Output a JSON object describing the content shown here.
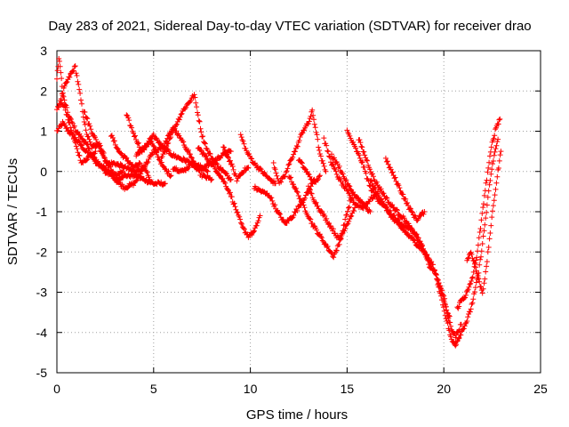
{
  "chart_data": {
    "type": "scatter",
    "title": "Day 283 of 2021, Sidereal Day-to-day VTEC variation (SDTVAR) for receiver drao",
    "xlabel": "GPS time / hours",
    "ylabel": "SDTVAR / TECUs",
    "xlim": [
      0,
      25
    ],
    "ylim": [
      -5,
      3
    ],
    "xticks": [
      "0",
      "5",
      "10",
      "15",
      "20",
      "25"
    ],
    "yticks": [
      "3",
      "2",
      "1",
      "0",
      "-1",
      "-2",
      "-3",
      "-4",
      "-5"
    ],
    "grid": true,
    "marker": "+",
    "color": "#ff0000",
    "series": [
      {
        "name": "trace-1",
        "points": [
          [
            0.0,
            1.0
          ],
          [
            0.3,
            1.2
          ],
          [
            0.6,
            1.0
          ],
          [
            1.0,
            0.8
          ],
          [
            1.5,
            0.5
          ],
          [
            2.0,
            0.3
          ],
          [
            2.5,
            0.0
          ],
          [
            3.0,
            -0.1
          ],
          [
            3.4,
            0.0
          ]
        ]
      },
      {
        "name": "trace-2",
        "points": [
          [
            0.0,
            2.3
          ],
          [
            0.1,
            2.8
          ],
          [
            0.2,
            2.5
          ],
          [
            0.3,
            1.9
          ],
          [
            0.6,
            1.4
          ],
          [
            1.0,
            1.0
          ],
          [
            1.5,
            0.7
          ],
          [
            2.0,
            0.2
          ],
          [
            2.5,
            0.1
          ],
          [
            3.0,
            -0.2
          ],
          [
            3.5,
            -0.1
          ],
          [
            4.0,
            -0.1
          ],
          [
            4.5,
            -0.2
          ],
          [
            5.0,
            -0.3
          ],
          [
            5.6,
            -0.3
          ]
        ]
      },
      {
        "name": "trace-3",
        "points": [
          [
            0.0,
            1.5
          ],
          [
            0.4,
            2.1
          ],
          [
            0.7,
            2.4
          ],
          [
            0.95,
            2.6
          ],
          [
            1.2,
            1.9
          ],
          [
            1.5,
            1.0
          ],
          [
            1.8,
            0.6
          ],
          [
            2.2,
            0.7
          ],
          [
            2.6,
            0.2
          ],
          [
            3.0,
            0.2
          ],
          [
            3.5,
            0.1
          ],
          [
            4.0,
            0.0
          ],
          [
            4.5,
            0.1
          ],
          [
            4.8,
            -0.2
          ]
        ]
      },
      {
        "name": "trace-4",
        "points": [
          [
            0.2,
            1.7
          ],
          [
            0.4,
            1.6
          ],
          [
            0.7,
            1.1
          ],
          [
            1.0,
            0.6
          ],
          [
            1.3,
            0.2
          ],
          [
            1.7,
            0.4
          ],
          [
            2.0,
            0.5
          ]
        ]
      },
      {
        "name": "trace-5",
        "points": [
          [
            1.4,
            1.5
          ],
          [
            1.8,
            1.0
          ],
          [
            2.2,
            0.6
          ],
          [
            2.6,
            0.2
          ],
          [
            2.9,
            0.0
          ]
        ]
      },
      {
        "name": "trace-6",
        "points": [
          [
            2.8,
            0.9
          ],
          [
            3.2,
            0.5
          ],
          [
            3.6,
            0.3
          ],
          [
            4.0,
            0.1
          ],
          [
            4.3,
            0.2
          ]
        ]
      },
      {
        "name": "trace-7",
        "points": [
          [
            3.6,
            1.4
          ],
          [
            4.0,
            0.9
          ],
          [
            4.4,
            0.5
          ],
          [
            4.8,
            0.8
          ],
          [
            5.2,
            0.4
          ],
          [
            5.5,
            0.1
          ],
          [
            5.9,
            -0.1
          ]
        ]
      },
      {
        "name": "trace-8",
        "points": [
          [
            3.0,
            -0.2
          ],
          [
            3.5,
            -0.4
          ],
          [
            4.0,
            -0.3
          ],
          [
            4.5,
            0.1
          ],
          [
            5.0,
            0.5
          ],
          [
            5.5,
            0.6
          ],
          [
            6.0,
            0.4
          ],
          [
            6.5,
            0.3
          ],
          [
            7.0,
            0.2
          ],
          [
            7.5,
            -0.1
          ],
          [
            8.0,
            -0.2
          ]
        ]
      },
      {
        "name": "trace-9",
        "points": [
          [
            4.1,
            0.4
          ],
          [
            4.6,
            0.6
          ],
          [
            5.0,
            0.9
          ],
          [
            5.5,
            0.6
          ],
          [
            6.0,
            1.1
          ],
          [
            6.4,
            0.8
          ],
          [
            6.8,
            0.5
          ],
          [
            7.2,
            0.1
          ],
          [
            7.8,
            0.0
          ]
        ]
      },
      {
        "name": "trace-10",
        "points": [
          [
            5.4,
            0.3
          ],
          [
            5.8,
            0.8
          ],
          [
            6.2,
            1.2
          ],
          [
            6.5,
            1.5
          ],
          [
            6.8,
            1.7
          ],
          [
            7.1,
            1.9
          ],
          [
            7.3,
            1.4
          ],
          [
            7.5,
            0.9
          ],
          [
            7.8,
            0.5
          ],
          [
            8.2,
            0.2
          ],
          [
            8.6,
            0.0
          ],
          [
            9.0,
            -0.2
          ]
        ]
      },
      {
        "name": "trace-11",
        "points": [
          [
            6.0,
            0.1
          ],
          [
            6.5,
            0.0
          ],
          [
            7.0,
            0.2
          ],
          [
            7.5,
            0.1
          ],
          [
            8.0,
            0.2
          ],
          [
            8.5,
            0.4
          ],
          [
            9.0,
            0.5
          ]
        ]
      },
      {
        "name": "trace-12",
        "points": [
          [
            7.3,
            0.6
          ],
          [
            7.8,
            0.3
          ],
          [
            8.3,
            0.0
          ],
          [
            8.7,
            -0.3
          ],
          [
            9.0,
            -0.6
          ],
          [
            9.3,
            -1.0
          ],
          [
            9.6,
            -1.4
          ],
          [
            9.9,
            -1.6
          ],
          [
            10.2,
            -1.5
          ],
          [
            10.5,
            -1.1
          ]
        ]
      },
      {
        "name": "trace-13",
        "points": [
          [
            8.6,
            0.6
          ],
          [
            9.0,
            0.2
          ],
          [
            9.3,
            -0.2
          ],
          [
            9.6,
            0.0
          ],
          [
            9.9,
            0.1
          ]
        ]
      },
      {
        "name": "trace-14",
        "points": [
          [
            9.5,
            0.9
          ],
          [
            9.8,
            0.5
          ],
          [
            10.2,
            0.2
          ],
          [
            10.6,
            0.0
          ],
          [
            11.0,
            -0.2
          ],
          [
            11.3,
            -0.3
          ]
        ]
      },
      {
        "name": "trace-15",
        "points": [
          [
            10.2,
            -0.4
          ],
          [
            10.6,
            -0.5
          ],
          [
            11.0,
            -0.6
          ],
          [
            11.4,
            -1.0
          ],
          [
            11.8,
            -1.3
          ],
          [
            12.2,
            -1.1
          ],
          [
            12.6,
            -0.8
          ],
          [
            13.0,
            -0.5
          ],
          [
            13.3,
            -0.2
          ]
        ]
      },
      {
        "name": "trace-16",
        "points": [
          [
            11.2,
            0.2
          ],
          [
            11.5,
            -0.3
          ],
          [
            11.8,
            -0.1
          ],
          [
            12.1,
            0.3
          ],
          [
            12.4,
            0.6
          ],
          [
            12.7,
            1.0
          ],
          [
            13.0,
            1.2
          ],
          [
            13.2,
            1.5
          ],
          [
            13.4,
            1.0
          ],
          [
            13.6,
            0.4
          ],
          [
            13.9,
            0.0
          ]
        ]
      },
      {
        "name": "trace-17",
        "points": [
          [
            12.0,
            -0.1
          ],
          [
            12.4,
            -0.5
          ],
          [
            12.8,
            -0.9
          ],
          [
            13.2,
            -1.3
          ],
          [
            13.6,
            -1.6
          ],
          [
            14.0,
            -1.9
          ],
          [
            14.3,
            -2.1
          ],
          [
            14.6,
            -1.8
          ],
          [
            14.9,
            -1.2
          ],
          [
            15.2,
            -0.7
          ]
        ]
      },
      {
        "name": "trace-18",
        "points": [
          [
            12.5,
            0.3
          ],
          [
            12.9,
            0.0
          ],
          [
            13.3,
            -0.3
          ],
          [
            13.6,
            -0.1
          ]
        ]
      },
      {
        "name": "trace-19",
        "points": [
          [
            13.0,
            -0.4
          ],
          [
            13.4,
            -0.8
          ],
          [
            13.8,
            -1.1
          ],
          [
            14.2,
            -1.4
          ],
          [
            14.6,
            -1.7
          ],
          [
            15.0,
            -1.3
          ],
          [
            15.4,
            -0.9
          ]
        ]
      },
      {
        "name": "trace-20",
        "points": [
          [
            13.8,
            0.8
          ],
          [
            14.2,
            0.2
          ],
          [
            14.6,
            -0.2
          ],
          [
            15.0,
            -0.5
          ],
          [
            15.4,
            -0.8
          ],
          [
            15.8,
            -0.9
          ],
          [
            16.2,
            -0.7
          ],
          [
            16.6,
            -0.5
          ]
        ]
      },
      {
        "name": "trace-21",
        "points": [
          [
            14.2,
            0.4
          ],
          [
            14.6,
            0.1
          ],
          [
            15.0,
            -0.3
          ],
          [
            15.4,
            -0.6
          ],
          [
            15.8,
            -0.8
          ],
          [
            16.2,
            -1.0
          ]
        ]
      },
      {
        "name": "trace-22",
        "points": [
          [
            15.0,
            1.0
          ],
          [
            15.4,
            0.6
          ],
          [
            15.8,
            0.2
          ],
          [
            16.2,
            -0.4
          ],
          [
            16.6,
            -0.7
          ],
          [
            17.0,
            -0.9
          ],
          [
            17.4,
            -1.2
          ],
          [
            17.8,
            -1.4
          ],
          [
            18.2,
            -1.6
          ],
          [
            18.6,
            -1.8
          ],
          [
            19.0,
            -2.0
          ],
          [
            19.4,
            -2.3
          ],
          [
            19.7,
            -2.7
          ],
          [
            20.0,
            -3.1
          ],
          [
            20.2,
            -3.6
          ],
          [
            20.4,
            -3.9
          ],
          [
            20.6,
            -4.1
          ],
          [
            20.9,
            -3.8
          ]
        ]
      },
      {
        "name": "trace-23",
        "points": [
          [
            15.6,
            0.8
          ],
          [
            16.0,
            0.3
          ],
          [
            16.4,
            -0.2
          ],
          [
            16.8,
            -0.5
          ],
          [
            17.2,
            -0.8
          ],
          [
            17.6,
            -1.0
          ],
          [
            18.0,
            -1.2
          ],
          [
            18.4,
            -1.5
          ],
          [
            18.8,
            -1.8
          ],
          [
            19.2,
            -2.2
          ],
          [
            19.6,
            -2.6
          ],
          [
            19.9,
            -3.0
          ],
          [
            20.1,
            -3.4
          ],
          [
            20.3,
            -3.6
          ]
        ]
      },
      {
        "name": "trace-24",
        "points": [
          [
            16.2,
            -0.2
          ],
          [
            16.6,
            -0.6
          ],
          [
            17.0,
            -0.9
          ],
          [
            17.4,
            -1.1
          ],
          [
            17.8,
            -1.3
          ],
          [
            18.2,
            -1.4
          ],
          [
            18.6,
            -1.6
          ],
          [
            19.0,
            -2.0
          ],
          [
            19.3,
            -2.4
          ]
        ]
      },
      {
        "name": "trace-25",
        "points": [
          [
            17.0,
            0.3
          ],
          [
            17.4,
            -0.1
          ],
          [
            17.8,
            -0.5
          ],
          [
            18.2,
            -0.9
          ],
          [
            18.6,
            -1.2
          ],
          [
            19.0,
            -1.0
          ]
        ]
      },
      {
        "name": "trace-26",
        "points": [
          [
            19.6,
            -2.6
          ],
          [
            19.9,
            -3.2
          ],
          [
            20.2,
            -3.8
          ],
          [
            20.4,
            -4.2
          ],
          [
            20.6,
            -4.3
          ],
          [
            20.8,
            -4.1
          ],
          [
            21.0,
            -3.9
          ],
          [
            21.2,
            -3.7
          ],
          [
            21.4,
            -3.4
          ],
          [
            21.6,
            -3.0
          ],
          [
            21.8,
            -2.5
          ],
          [
            22.0,
            -1.8
          ],
          [
            22.2,
            -1.0
          ],
          [
            22.4,
            -0.2
          ],
          [
            22.6,
            0.4
          ],
          [
            22.8,
            0.8
          ]
        ]
      },
      {
        "name": "trace-27",
        "points": [
          [
            20.7,
            -3.4
          ],
          [
            20.9,
            -3.2
          ],
          [
            21.1,
            -3.1
          ],
          [
            21.3,
            -2.9
          ],
          [
            21.5,
            -2.6
          ],
          [
            21.7,
            -2.1
          ],
          [
            21.9,
            -1.4
          ],
          [
            22.1,
            -0.6
          ],
          [
            22.3,
            0.1
          ],
          [
            22.5,
            0.7
          ],
          [
            22.7,
            1.1
          ],
          [
            22.9,
            1.3
          ]
        ]
      },
      {
        "name": "trace-28",
        "points": [
          [
            21.2,
            -2.2
          ],
          [
            21.4,
            -2.0
          ],
          [
            21.6,
            -2.3
          ],
          [
            21.8,
            -2.7
          ],
          [
            22.0,
            -3.0
          ],
          [
            22.2,
            -2.4
          ],
          [
            22.4,
            -1.5
          ],
          [
            22.6,
            -0.7
          ],
          [
            22.8,
            0.0
          ],
          [
            22.95,
            0.5
          ]
        ]
      }
    ]
  }
}
